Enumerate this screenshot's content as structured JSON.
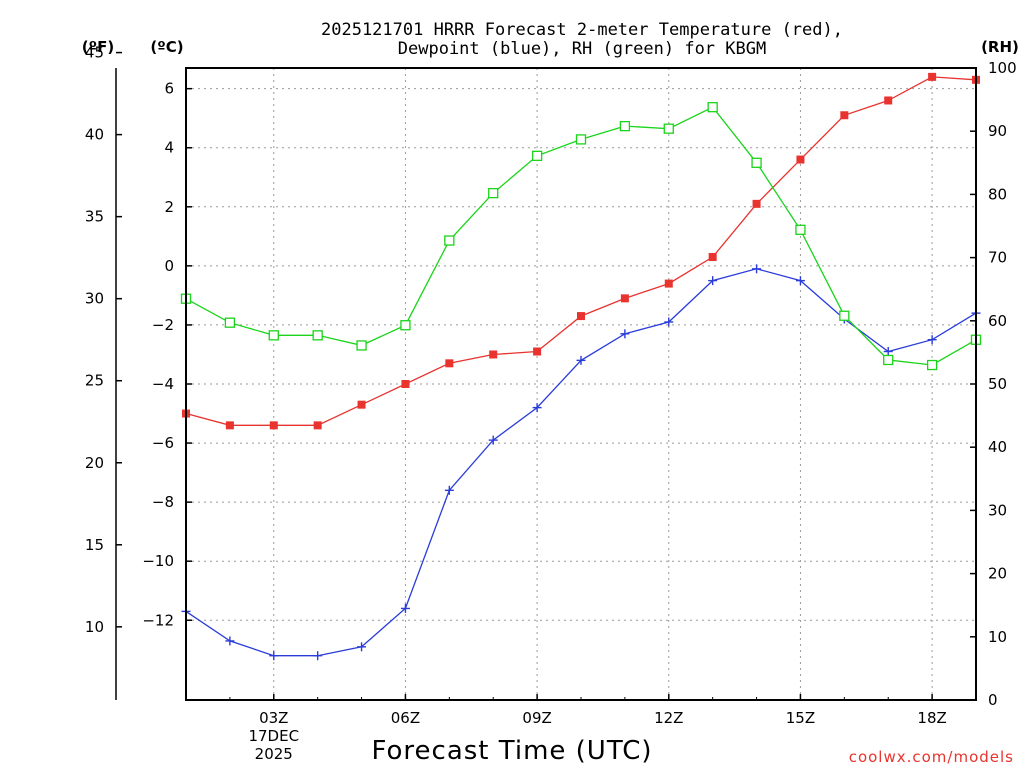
{
  "chart_data": {
    "type": "line",
    "title_line1": "2025121701 HRRR Forecast 2-meter Temperature (red),",
    "title_line2": "Dewpoint (blue), RH (green) for KBGM",
    "xlabel": "Forecast Time (UTC)",
    "credit": "coolwx.com/models",
    "units": {
      "fahrenheit": "(ºF)",
      "celsius": "(ºC)",
      "rh": "(RH)"
    },
    "x": [
      1,
      2,
      3,
      4,
      5,
      6,
      7,
      8,
      9,
      10,
      11,
      12,
      13,
      14,
      15,
      16,
      17,
      18,
      19
    ],
    "xlim": [
      1,
      19
    ],
    "x_ticks": [
      {
        "x": 3,
        "label": "03Z",
        "sub1": "17DEC",
        "sub2": "2025"
      },
      {
        "x": 6,
        "label": "06Z"
      },
      {
        "x": 9,
        "label": "09Z"
      },
      {
        "x": 12,
        "label": "12Z"
      },
      {
        "x": 15,
        "label": "15Z"
      },
      {
        "x": 18,
        "label": "18Z"
      }
    ],
    "y_celsius": {
      "lim": [
        -14.7,
        6.7
      ],
      "ticks": [
        -12,
        -10,
        -8,
        -6,
        -4,
        -2,
        0,
        2,
        4,
        6
      ],
      "tick_labels": [
        "−12",
        "−10",
        "−8",
        "−6",
        "−4",
        "−2",
        "0",
        "2",
        "4",
        "6"
      ]
    },
    "y_fahrenheit": {
      "lim": [
        5.54,
        44.06
      ],
      "ticks": [
        10,
        15,
        20,
        25,
        30,
        35,
        40,
        45
      ],
      "tick_labels": [
        "10",
        "15",
        "20",
        "25",
        "30",
        "35",
        "40",
        "45"
      ]
    },
    "y_rh": {
      "lim": [
        0,
        100
      ],
      "ticks": [
        0,
        10,
        20,
        30,
        40,
        50,
        60,
        70,
        80,
        90,
        100
      ],
      "tick_labels": [
        "0",
        "10",
        "20",
        "30",
        "40",
        "50",
        "60",
        "70",
        "80",
        "90",
        "100"
      ]
    },
    "grid": true,
    "series": [
      {
        "name": "2-meter Temperature",
        "axis": "celsius",
        "color": "#e8332f",
        "marker": "filled-square",
        "values": [
          -5.0,
          -5.4,
          -5.4,
          -5.4,
          -4.7,
          -4.0,
          -3.3,
          -3.0,
          -2.9,
          -1.7,
          -1.1,
          -0.6,
          0.3,
          2.1,
          3.6,
          5.1,
          5.6,
          6.4,
          6.3
        ]
      },
      {
        "name": "Dewpoint",
        "axis": "celsius",
        "color": "#2a3cd9",
        "marker": "plus",
        "values": [
          -11.7,
          -12.7,
          -13.2,
          -13.2,
          -12.9,
          -11.6,
          -7.6,
          -5.9,
          -4.8,
          -3.2,
          -2.3,
          -1.9,
          -0.5,
          -0.1,
          -0.5,
          -1.8,
          -2.9,
          -2.5,
          -1.6
        ]
      },
      {
        "name": "RH",
        "axis": "rh",
        "color": "#19d419",
        "marker": "open-square",
        "values": [
          63.5,
          59.7,
          57.7,
          57.7,
          56.1,
          59.3,
          72.7,
          80.2,
          86.1,
          88.7,
          90.8,
          90.4,
          93.8,
          85.0,
          74.4,
          60.8,
          53.8,
          53.0,
          57.0
        ]
      }
    ]
  }
}
